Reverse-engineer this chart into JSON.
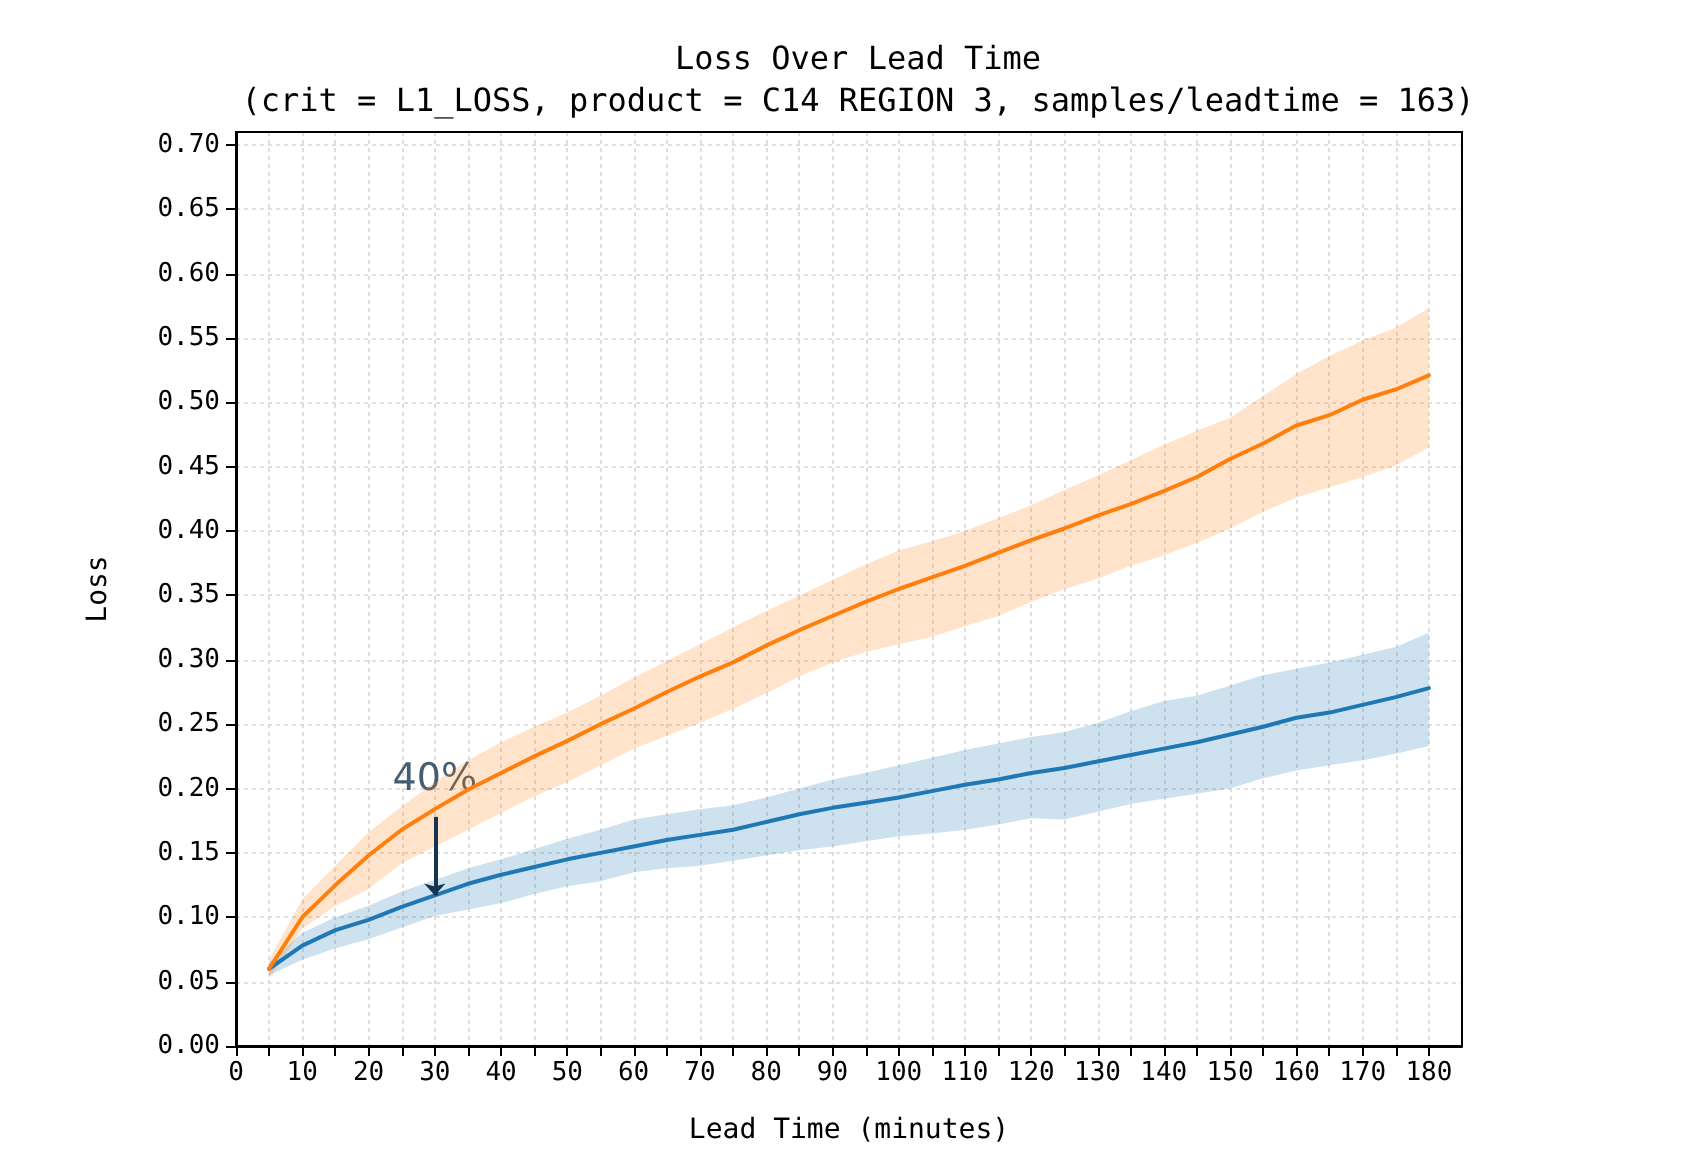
{
  "chart_data": {
    "type": "line",
    "title": "Loss Over Lead Time",
    "subtitle": "(crit = L1_LOSS, product = C14 REGION 3, samples/leadtime = 163)",
    "xlabel": "Lead Time (minutes)",
    "ylabel": "Loss",
    "x": [
      5,
      10,
      15,
      20,
      25,
      30,
      35,
      40,
      45,
      50,
      55,
      60,
      65,
      70,
      75,
      80,
      85,
      90,
      95,
      100,
      105,
      110,
      115,
      120,
      125,
      130,
      135,
      140,
      145,
      150,
      155,
      160,
      165,
      170,
      175,
      180
    ],
    "series": [
      {
        "color": "#1f77b4",
        "values": [
          0.06,
          0.078,
          0.09,
          0.098,
          0.108,
          0.117,
          0.126,
          0.133,
          0.139,
          0.145,
          0.15,
          0.155,
          0.16,
          0.164,
          0.168,
          0.174,
          0.18,
          0.185,
          0.189,
          0.193,
          0.198,
          0.203,
          0.207,
          0.212,
          0.216,
          0.221,
          0.226,
          0.231,
          0.236,
          0.242,
          0.248,
          0.255,
          0.259,
          0.265,
          0.271,
          0.278
        ],
        "upper": [
          0.065,
          0.088,
          0.1,
          0.109,
          0.12,
          0.129,
          0.138,
          0.145,
          0.153,
          0.161,
          0.168,
          0.176,
          0.18,
          0.184,
          0.187,
          0.193,
          0.2,
          0.207,
          0.212,
          0.218,
          0.224,
          0.23,
          0.235,
          0.24,
          0.244,
          0.251,
          0.26,
          0.268,
          0.272,
          0.28,
          0.288,
          0.293,
          0.298,
          0.304,
          0.31,
          0.321
        ],
        "lower": [
          0.055,
          0.067,
          0.076,
          0.083,
          0.092,
          0.101,
          0.106,
          0.111,
          0.118,
          0.124,
          0.128,
          0.135,
          0.138,
          0.14,
          0.144,
          0.148,
          0.152,
          0.155,
          0.159,
          0.163,
          0.165,
          0.168,
          0.172,
          0.177,
          0.176,
          0.182,
          0.188,
          0.192,
          0.196,
          0.2,
          0.208,
          0.214,
          0.218,
          0.222,
          0.227,
          0.233
        ]
      },
      {
        "color": "#ff7f0e",
        "values": [
          0.06,
          0.1,
          0.125,
          0.148,
          0.168,
          0.184,
          0.199,
          0.212,
          0.225,
          0.237,
          0.25,
          0.262,
          0.275,
          0.287,
          0.298,
          0.311,
          0.323,
          0.334,
          0.345,
          0.355,
          0.364,
          0.373,
          0.383,
          0.393,
          0.402,
          0.412,
          0.421,
          0.431,
          0.442,
          0.456,
          0.468,
          0.482,
          0.49,
          0.502,
          0.51,
          0.521
        ],
        "upper": [
          0.067,
          0.114,
          0.14,
          0.166,
          0.186,
          0.205,
          0.222,
          0.236,
          0.248,
          0.259,
          0.272,
          0.286,
          0.299,
          0.312,
          0.325,
          0.338,
          0.35,
          0.362,
          0.374,
          0.385,
          0.392,
          0.4,
          0.41,
          0.42,
          0.432,
          0.443,
          0.455,
          0.467,
          0.478,
          0.488,
          0.505,
          0.522,
          0.536,
          0.548,
          0.558,
          0.573
        ],
        "lower": [
          0.052,
          0.091,
          0.109,
          0.122,
          0.142,
          0.155,
          0.168,
          0.181,
          0.194,
          0.205,
          0.218,
          0.231,
          0.241,
          0.251,
          0.262,
          0.274,
          0.287,
          0.298,
          0.306,
          0.312,
          0.318,
          0.326,
          0.334,
          0.345,
          0.355,
          0.363,
          0.373,
          0.381,
          0.391,
          0.402,
          0.415,
          0.426,
          0.434,
          0.442,
          0.451,
          0.465
        ]
      }
    ],
    "annotations": [
      {
        "text": "40%",
        "x": 30,
        "y": 0.184
      }
    ],
    "xlim": [
      0,
      185
    ],
    "xticks": [
      0,
      {
        "value": 5,
        "label": null
      },
      10,
      {
        "value": 15,
        "label": null
      },
      20,
      {
        "value": 25,
        "label": null
      },
      30,
      {
        "value": 35,
        "label": null
      },
      40,
      {
        "value": 45,
        "label": null
      },
      50,
      {
        "value": 55,
        "label": null
      },
      60,
      {
        "value": 65,
        "label": null
      },
      70,
      {
        "value": 75,
        "label": null
      },
      80,
      {
        "value": 85,
        "label": null
      },
      90,
      {
        "value": 95,
        "label": null
      },
      100,
      {
        "value": 105,
        "label": null
      },
      110,
      {
        "value": 115,
        "label": null
      },
      120,
      {
        "value": 125,
        "label": null
      },
      130,
      {
        "value": 135,
        "label": null
      },
      140,
      {
        "value": 145,
        "label": null
      },
      150,
      {
        "value": 155,
        "label": null
      },
      160,
      {
        "value": 165,
        "label": null
      },
      170,
      {
        "value": 175,
        "label": null
      },
      180
    ],
    "ylim": [
      0,
      0.71
    ],
    "yticks": [
      {
        "value": 0,
        "label": "0.00"
      },
      {
        "value": 0.05,
        "label": "0.05"
      },
      {
        "value": 0.1,
        "label": "0.10"
      },
      {
        "value": 0.15,
        "label": "0.15"
      },
      {
        "value": 0.2,
        "label": "0.20"
      },
      {
        "value": 0.25,
        "label": "0.25"
      },
      {
        "value": 0.3,
        "label": "0.30"
      },
      {
        "value": 0.35,
        "label": "0.35"
      },
      {
        "value": 0.4,
        "label": "0.40"
      },
      {
        "value": 0.45,
        "label": "0.45"
      },
      {
        "value": 0.5,
        "label": "0.50"
      },
      {
        "value": 0.55,
        "label": "0.55"
      },
      {
        "value": 0.6,
        "label": "0.60"
      },
      {
        "value": 0.65,
        "label": "0.65"
      },
      {
        "value": 0.7,
        "label": "0.70"
      }
    ],
    "grid": true,
    "marker": "none",
    "line_style": "solid"
  }
}
